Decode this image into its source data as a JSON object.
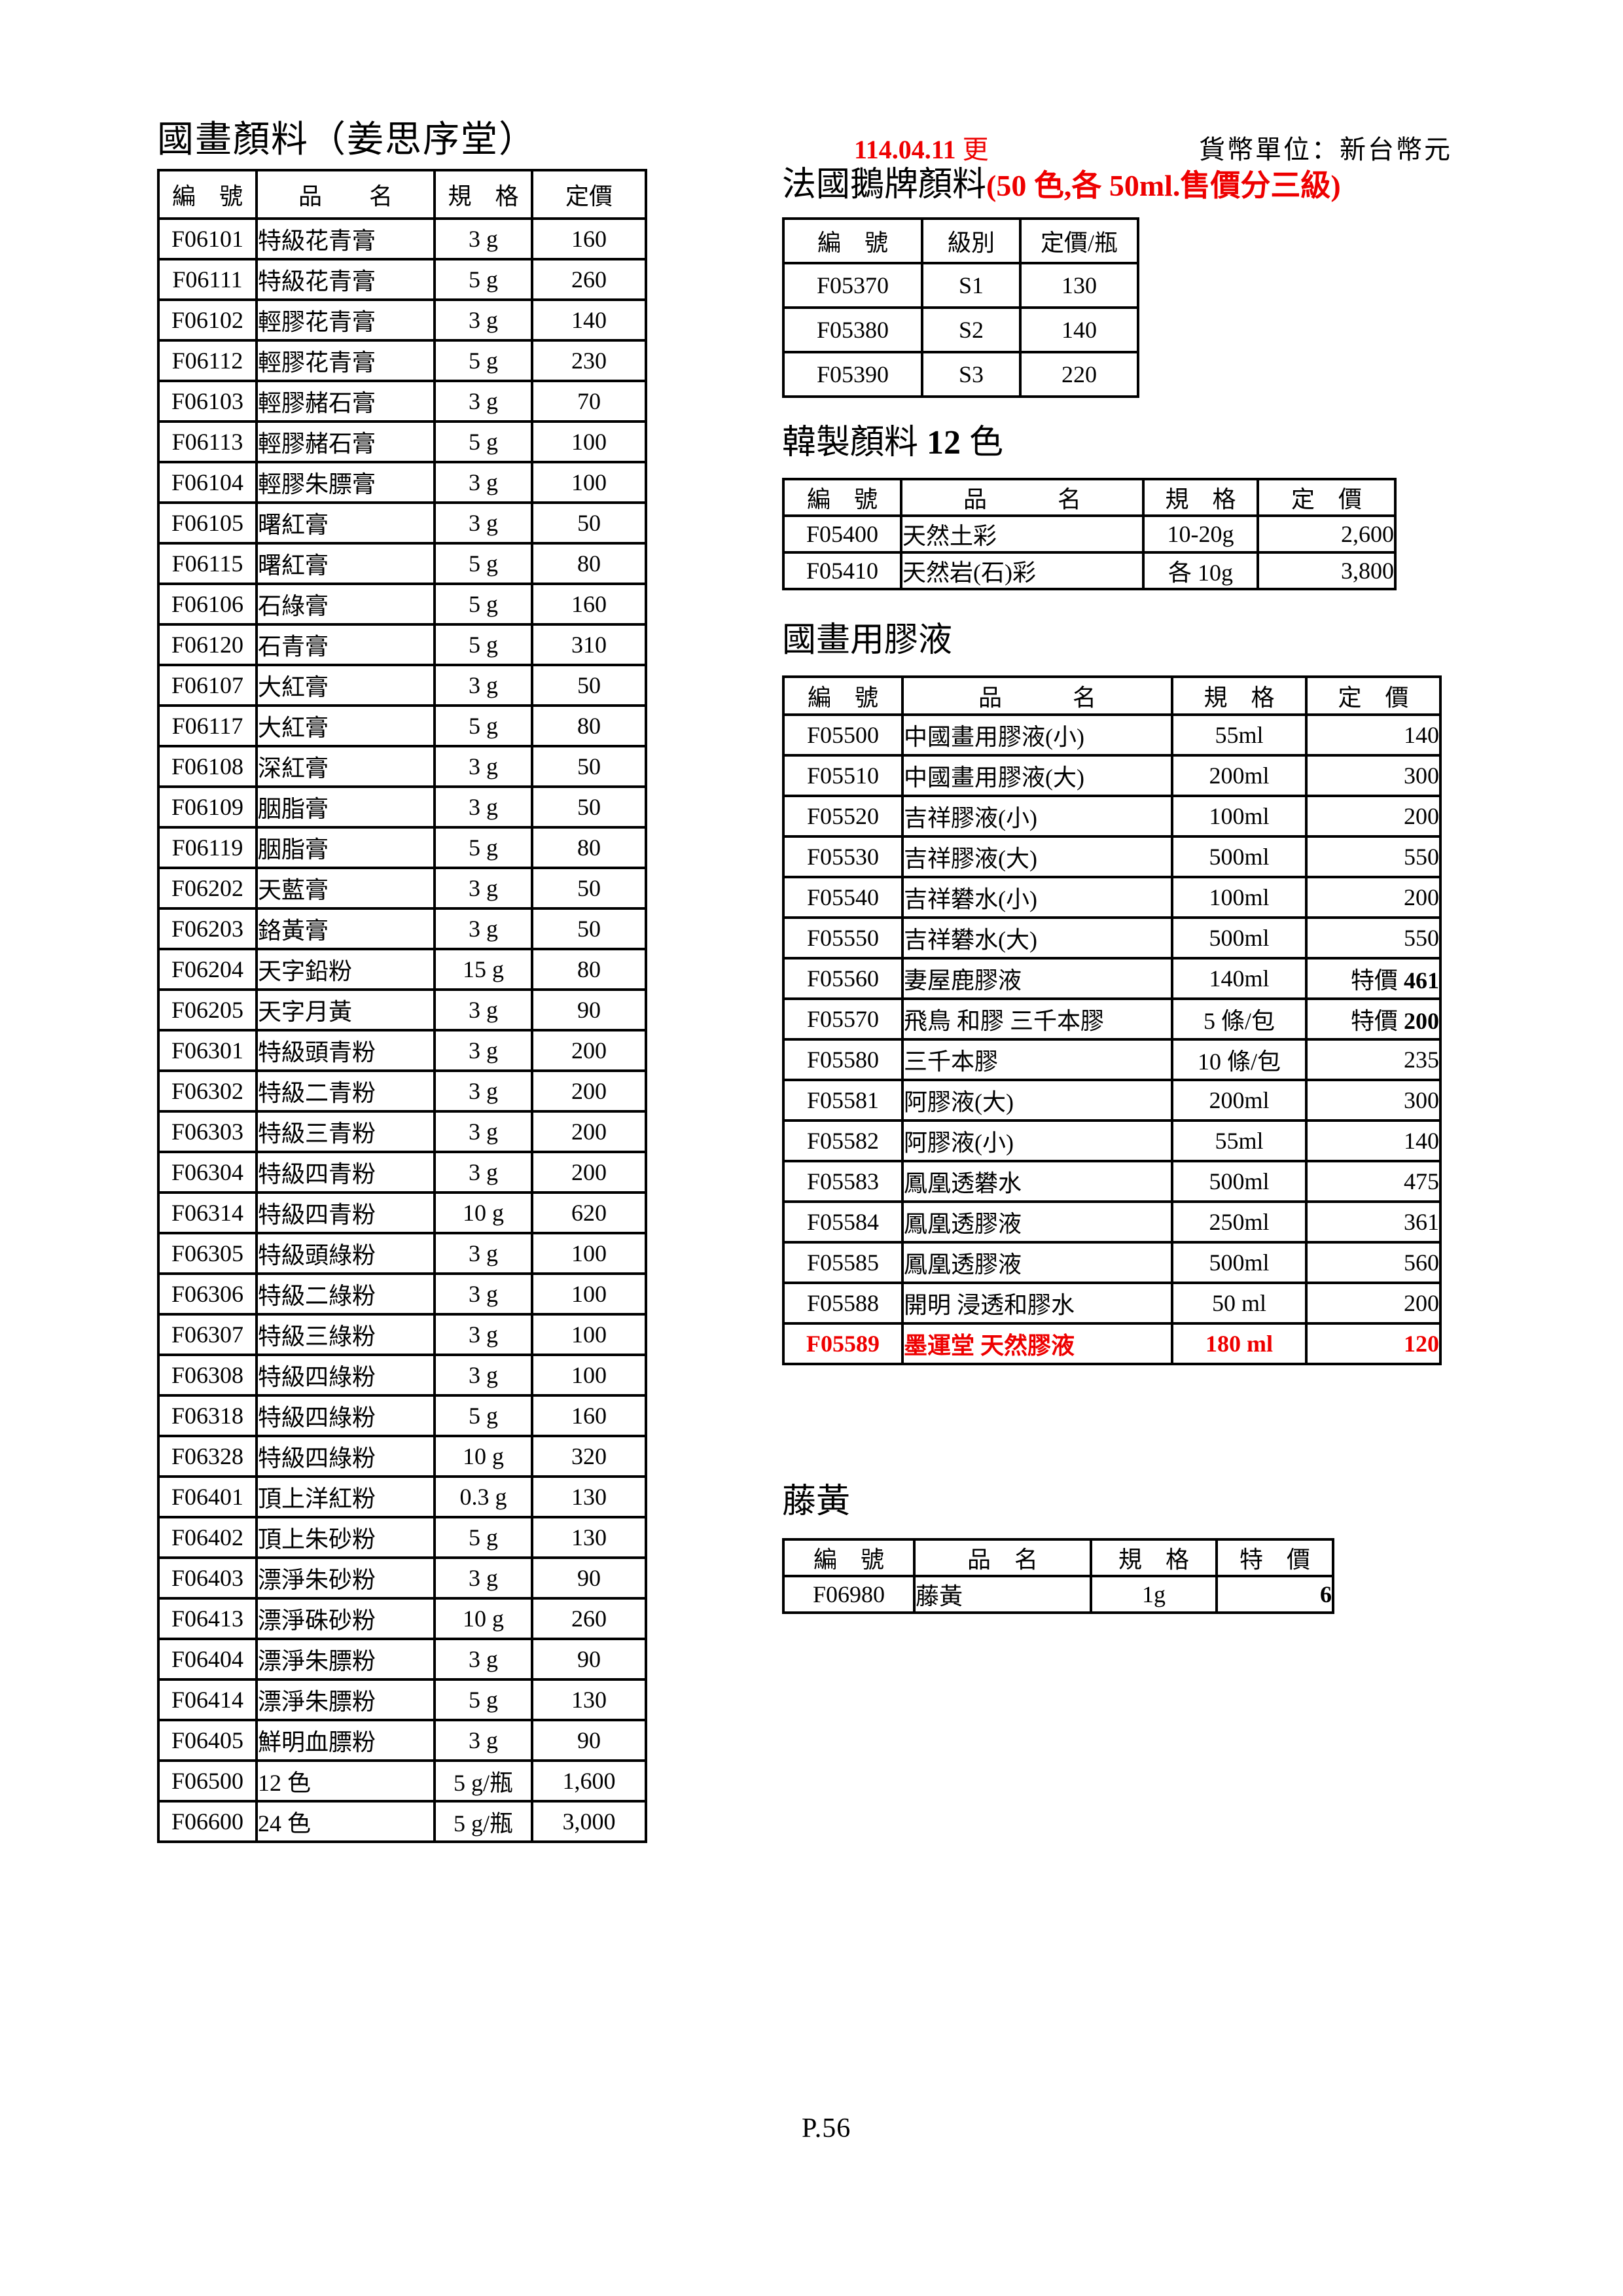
{
  "colors": {
    "accent_red": "#ee0000"
  },
  "header": {
    "update_num": "114.04.11 ",
    "update_suffix": "更",
    "currency_note": "貨幣單位：新台幣元"
  },
  "left_section": {
    "title": "國畫顏料（姜思序堂）",
    "table": {
      "headers": [
        "編　號",
        "品　　名",
        "規　格",
        "定價"
      ],
      "rows": [
        {
          "cells": [
            "F06101",
            "特級花青膏",
            "3 g",
            "160"
          ]
        },
        {
          "cells": [
            "F06111",
            "特級花青膏",
            "5 g",
            "260"
          ]
        },
        {
          "cells": [
            "F06102",
            "輕膠花青膏",
            "3 g",
            "140"
          ]
        },
        {
          "cells": [
            "F06112",
            "輕膠花青膏",
            "5 g",
            "230"
          ]
        },
        {
          "cells": [
            "F06103",
            "輕膠赭石膏",
            "3 g",
            "70"
          ]
        },
        {
          "cells": [
            "F06113",
            "輕膠赭石膏",
            "5 g",
            "100"
          ]
        },
        {
          "cells": [
            "F06104",
            "輕膠朱膘膏",
            "3 g",
            "100"
          ]
        },
        {
          "cells": [
            "F06105",
            "曙紅膏",
            "3 g",
            "50"
          ]
        },
        {
          "cells": [
            "F06115",
            "曙紅膏",
            "5 g",
            "80"
          ]
        },
        {
          "cells": [
            "F06106",
            "石綠膏",
            "5 g",
            "160"
          ]
        },
        {
          "cells": [
            "F06120",
            "石青膏",
            "5 g",
            "310"
          ]
        },
        {
          "cells": [
            "F06107",
            "大紅膏",
            "3 g",
            "50"
          ]
        },
        {
          "cells": [
            "F06117",
            "大紅膏",
            "5 g",
            "80"
          ]
        },
        {
          "cells": [
            "F06108",
            "深紅膏",
            "3 g",
            "50"
          ]
        },
        {
          "cells": [
            "F06109",
            "胭脂膏",
            "3 g",
            "50"
          ]
        },
        {
          "cells": [
            "F06119",
            "胭脂膏",
            "5 g",
            "80"
          ]
        },
        {
          "cells": [
            "F06202",
            "天藍膏",
            "3 g",
            "50"
          ]
        },
        {
          "cells": [
            "F06203",
            "鉻黃膏",
            "3 g",
            "50"
          ]
        },
        {
          "cells": [
            "F06204",
            "天字鉛粉",
            "15 g",
            "80"
          ]
        },
        {
          "cells": [
            "F06205",
            "天字月黃",
            "3 g",
            "90"
          ]
        },
        {
          "cells": [
            "F06301",
            "特級頭青粉",
            "3 g",
            "200"
          ]
        },
        {
          "cells": [
            "F06302",
            "特級二青粉",
            "3 g",
            "200"
          ]
        },
        {
          "cells": [
            "F06303",
            "特級三青粉",
            "3 g",
            "200"
          ]
        },
        {
          "cells": [
            "F06304",
            "特級四青粉",
            "3 g",
            "200"
          ]
        },
        {
          "cells": [
            "F06314",
            "特級四青粉",
            "10 g",
            "620"
          ]
        },
        {
          "cells": [
            "F06305",
            "特級頭綠粉",
            "3 g",
            "100"
          ]
        },
        {
          "cells": [
            "F06306",
            "特級二綠粉",
            "3 g",
            "100"
          ]
        },
        {
          "cells": [
            "F06307",
            "特級三綠粉",
            "3 g",
            "100"
          ]
        },
        {
          "cells": [
            "F06308",
            "特級四綠粉",
            "3 g",
            "100"
          ]
        },
        {
          "cells": [
            "F06318",
            "特級四綠粉",
            "5 g",
            "160"
          ]
        },
        {
          "cells": [
            "F06328",
            "特級四綠粉",
            "10 g",
            "320"
          ]
        },
        {
          "cells": [
            "F06401",
            "頂上洋紅粉",
            "0.3 g",
            "130"
          ]
        },
        {
          "cells": [
            "F06402",
            "頂上朱砂粉",
            "5 g",
            "130"
          ]
        },
        {
          "cells": [
            "F06403",
            "漂淨朱砂粉",
            "3 g",
            "90"
          ]
        },
        {
          "cells": [
            "F06413",
            "漂淨硃砂粉",
            "10 g",
            "260"
          ]
        },
        {
          "cells": [
            "F06404",
            "漂淨朱膘粉",
            "3 g",
            "90"
          ]
        },
        {
          "cells": [
            "F06414",
            "漂淨朱膘粉",
            "5 g",
            "130"
          ]
        },
        {
          "cells": [
            "F06405",
            "鮮明血膘粉",
            "3 g",
            "90"
          ]
        },
        {
          "cells": [
            "F06500",
            "12 色",
            "5 g/瓶",
            "1,600"
          ]
        },
        {
          "cells": [
            "F06600",
            "24 色",
            "5 g/瓶",
            "3,000"
          ]
        }
      ]
    }
  },
  "french_section": {
    "title_black": "法國鵝牌顏料",
    "title_red": "(50 色,各 50ml.售價分三級)",
    "table": {
      "headers": [
        "編　號",
        "級別",
        "定價/瓶"
      ],
      "rows": [
        {
          "cells": [
            "F05370",
            "S1",
            "130"
          ]
        },
        {
          "cells": [
            "F05380",
            "S2",
            "140"
          ]
        },
        {
          "cells": [
            "F05390",
            "S3",
            "220"
          ]
        }
      ]
    }
  },
  "korean_section": {
    "title_pre": "韓製顏料 ",
    "title_num": "12",
    "title_post": " 色",
    "table": {
      "headers": [
        "編　號",
        "品　　　名",
        "規　格",
        "定　價"
      ],
      "rows": [
        {
          "cells": [
            "F05400",
            "天然土彩",
            "10-20g",
            "2,600"
          ]
        },
        {
          "cells": [
            "F05410",
            "天然岩(石)彩",
            "各 10g",
            "3,800"
          ]
        }
      ]
    }
  },
  "glue_section": {
    "title": "國畫用膠液",
    "table": {
      "headers": [
        "編　號",
        "品　　　名",
        "規　格",
        "定　價"
      ],
      "rows": [
        {
          "cells": [
            "F05500",
            "中國畫用膠液(小)",
            "55ml",
            "140"
          ]
        },
        {
          "cells": [
            "F05510",
            "中國畫用膠液(大)",
            "200ml",
            "300"
          ]
        },
        {
          "cells": [
            "F05520",
            "吉祥膠液(小)",
            "100ml",
            "200"
          ]
        },
        {
          "cells": [
            "F05530",
            "吉祥膠液(大)",
            "500ml",
            "550"
          ]
        },
        {
          "cells": [
            "F05540",
            "吉祥礬水(小)",
            "100ml",
            "200"
          ]
        },
        {
          "cells": [
            "F05550",
            "吉祥礬水(大)",
            "500ml",
            "550"
          ]
        },
        {
          "cells": [
            "F05560",
            "妻屋鹿膠液",
            "140ml",
            {
              "label": "特價 ",
              "strong": "461"
            }
          ]
        },
        {
          "cells": [
            "F05570",
            "飛鳥 和膠 三千本膠",
            "5 條/包",
            {
              "label": "特價 ",
              "strong": "200"
            }
          ]
        },
        {
          "cells": [
            "F05580",
            "三千本膠",
            "10 條/包",
            "235"
          ]
        },
        {
          "cells": [
            "F05581",
            "阿膠液(大)",
            "200ml",
            "300"
          ]
        },
        {
          "cells": [
            "F05582",
            "阿膠液(小)",
            "55ml",
            "140"
          ]
        },
        {
          "cells": [
            "F05583",
            "鳳凰透礬水",
            "500ml",
            "475"
          ]
        },
        {
          "cells": [
            "F05584",
            "鳳凰透膠液",
            "250ml",
            "361"
          ]
        },
        {
          "cells": [
            "F05585",
            "鳳凰透膠液",
            "500ml",
            "560"
          ]
        },
        {
          "cells": [
            "F05588",
            "開明 浸透和膠水",
            "50 ml",
            "200"
          ]
        },
        {
          "cells": [
            "F05589",
            "墨運堂 天然膠液",
            "180 ml",
            "120"
          ],
          "red": true
        }
      ]
    }
  },
  "gamboge_section": {
    "title": "藤黃",
    "table": {
      "headers": [
        "編　號",
        "品　名",
        "規　格",
        "特　價"
      ],
      "rows": [
        {
          "cells": [
            "F06980",
            "藤黃",
            "1g",
            {
              "label": "",
              "strong": "6"
            }
          ]
        }
      ]
    }
  },
  "footer": {
    "page_label": "P.56"
  }
}
